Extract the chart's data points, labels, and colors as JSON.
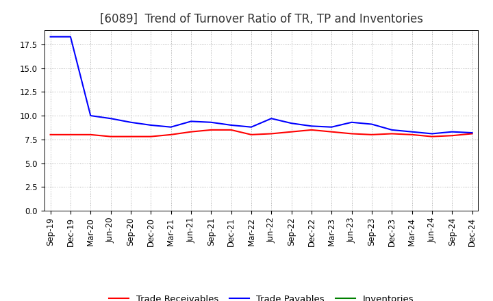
{
  "title": "[6089]  Trend of Turnover Ratio of TR, TP and Inventories",
  "x_labels": [
    "Sep-19",
    "Dec-19",
    "Mar-20",
    "Jun-20",
    "Sep-20",
    "Dec-20",
    "Mar-21",
    "Jun-21",
    "Sep-21",
    "Dec-21",
    "Mar-22",
    "Jun-22",
    "Sep-22",
    "Dec-22",
    "Mar-23",
    "Jun-23",
    "Sep-23",
    "Dec-23",
    "Mar-24",
    "Jun-24",
    "Sep-24",
    "Dec-24"
  ],
  "trade_receivables": [
    8.0,
    8.0,
    8.0,
    7.8,
    7.8,
    7.8,
    8.0,
    8.3,
    8.5,
    8.5,
    8.0,
    8.1,
    8.3,
    8.5,
    8.3,
    8.1,
    8.0,
    8.1,
    8.0,
    7.8,
    7.9,
    8.1
  ],
  "trade_payables": [
    18.3,
    18.3,
    10.0,
    9.7,
    9.3,
    9.0,
    8.8,
    9.4,
    9.3,
    9.0,
    8.8,
    9.7,
    9.2,
    8.9,
    8.8,
    9.3,
    9.1,
    8.5,
    8.3,
    8.1,
    8.3,
    8.2
  ],
  "inventories": [
    null,
    null,
    null,
    null,
    null,
    null,
    null,
    null,
    null,
    null,
    null,
    null,
    null,
    null,
    null,
    null,
    null,
    null,
    null,
    null,
    null,
    null
  ],
  "tr_color": "#ff0000",
  "tp_color": "#0000ff",
  "inv_color": "#008000",
  "ylim": [
    0.0,
    19.0
  ],
  "yticks": [
    0.0,
    2.5,
    5.0,
    7.5,
    10.0,
    12.5,
    15.0,
    17.5
  ],
  "ytick_labels": [
    "0.0",
    "2.5",
    "5.0",
    "7.5",
    "10.0",
    "12.5",
    "15.0",
    "17.5"
  ],
  "background_color": "#ffffff",
  "grid_color": "#999999",
  "legend_labels": [
    "Trade Receivables",
    "Trade Payables",
    "Inventories"
  ],
  "title_fontsize": 12,
  "axis_fontsize": 8.5,
  "legend_fontsize": 9.5
}
